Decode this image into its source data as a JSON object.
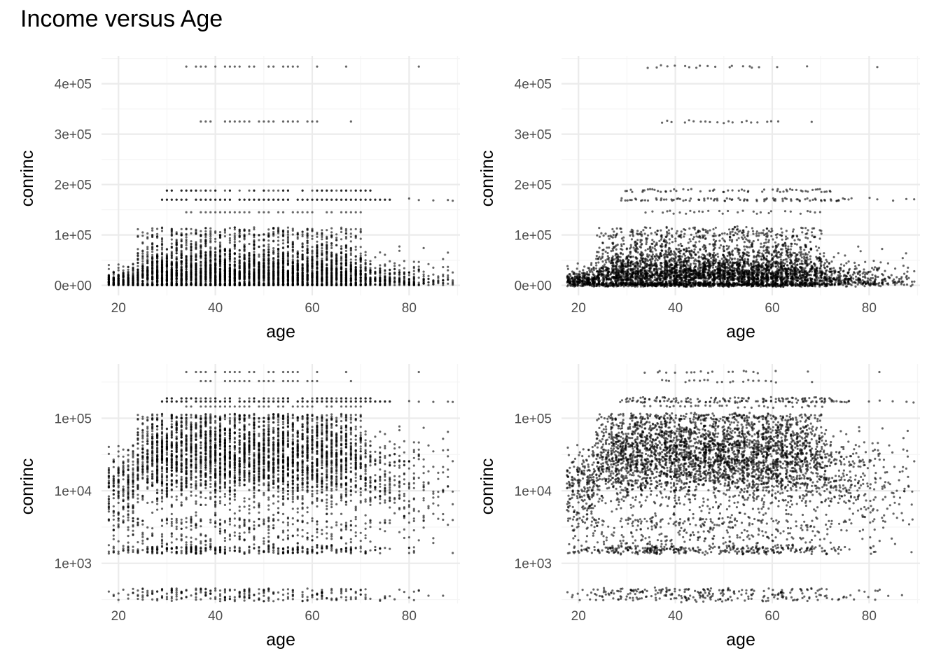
{
  "title": "Income versus Age",
  "colors": {
    "point": "#000000",
    "grid_major": "#ebebeb",
    "grid_minor": "#f5f5f5",
    "tick_text": "#4d4d4d"
  },
  "chart_data": [
    {
      "type": "scatter",
      "name": "top-left",
      "xlabel": "age",
      "ylabel": "conrinc",
      "xscale": "linear",
      "yscale": "linear",
      "xlim": [
        16.5,
        90.5
      ],
      "ylim": [
        -20000,
        455000
      ],
      "xticks": [
        20,
        40,
        60,
        80
      ],
      "xtick_labels": [
        "20",
        "40",
        "60",
        "80"
      ],
      "yticks": [
        0,
        100000,
        200000,
        300000,
        400000
      ],
      "ytick_labels": [
        "0e+00",
        "1e+05",
        "2e+05",
        "3e+05",
        "4e+05"
      ],
      "jitter": false,
      "description_of_data": "age is integer-valued (18-89); conrinc is dense 300-115000, with bands near 145000, 170000, 188000, 325000 and 434000",
      "bands": [
        {
          "y": 434000,
          "ages": [
            34,
            36,
            37,
            38,
            40,
            42,
            43,
            44,
            45,
            47,
            48,
            51,
            52,
            54,
            55,
            56,
            57,
            61,
            67,
            82
          ]
        },
        {
          "y": 325000,
          "ages": [
            37,
            38,
            39,
            42,
            43,
            44,
            45,
            46,
            47,
            49,
            50,
            51,
            52,
            54,
            55,
            56,
            57,
            59,
            60,
            61,
            68
          ]
        },
        {
          "y": 188000,
          "x_range": [
            30,
            72
          ]
        },
        {
          "y": 170000,
          "x_range": [
            29,
            76
          ]
        },
        {
          "y": 145000,
          "x_range": [
            32,
            70
          ]
        },
        {
          "y": "dense 300-115000",
          "x_range": [
            18,
            89
          ]
        }
      ],
      "grid": true,
      "legend": "none"
    },
    {
      "type": "scatter",
      "name": "top-right",
      "xlabel": "age",
      "ylabel": "conrinc",
      "xscale": "linear",
      "yscale": "linear",
      "xlim": [
        16.5,
        90.5
      ],
      "ylim": [
        -20000,
        455000
      ],
      "xticks": [
        20,
        40,
        60,
        80
      ],
      "xtick_labels": [
        "20",
        "40",
        "60",
        "80"
      ],
      "yticks": [
        0,
        100000,
        200000,
        300000,
        400000
      ],
      "ytick_labels": [
        "0e+00",
        "1e+05",
        "2e+05",
        "3e+05",
        "4e+05"
      ],
      "jitter": true,
      "grid": true,
      "legend": "none"
    },
    {
      "type": "scatter",
      "name": "bottom-left",
      "xlabel": "age",
      "ylabel": "conrinc",
      "xscale": "linear",
      "yscale": "log10",
      "xlim": [
        16.5,
        90.5
      ],
      "ylim": [
        280,
        560000
      ],
      "xticks": [
        20,
        40,
        60,
        80
      ],
      "xtick_labels": [
        "20",
        "40",
        "60",
        "80"
      ],
      "yticks": [
        1000,
        10000,
        100000
      ],
      "ytick_labels": [
        "1e+03",
        "1e+04",
        "1e+05"
      ],
      "jitter": false,
      "grid": true,
      "legend": "none"
    },
    {
      "type": "scatter",
      "name": "bottom-right",
      "xlabel": "age",
      "ylabel": "conrinc",
      "xscale": "linear",
      "yscale": "log10",
      "xlim": [
        16.5,
        90.5
      ],
      "ylim": [
        280,
        560000
      ],
      "xticks": [
        20,
        40,
        60,
        80
      ],
      "xtick_labels": [
        "20",
        "40",
        "60",
        "80"
      ],
      "yticks": [
        1000,
        10000,
        100000
      ],
      "ytick_labels": [
        "1e+03",
        "1e+04",
        "1e+05"
      ],
      "jitter": true,
      "grid": true,
      "legend": "none"
    }
  ]
}
